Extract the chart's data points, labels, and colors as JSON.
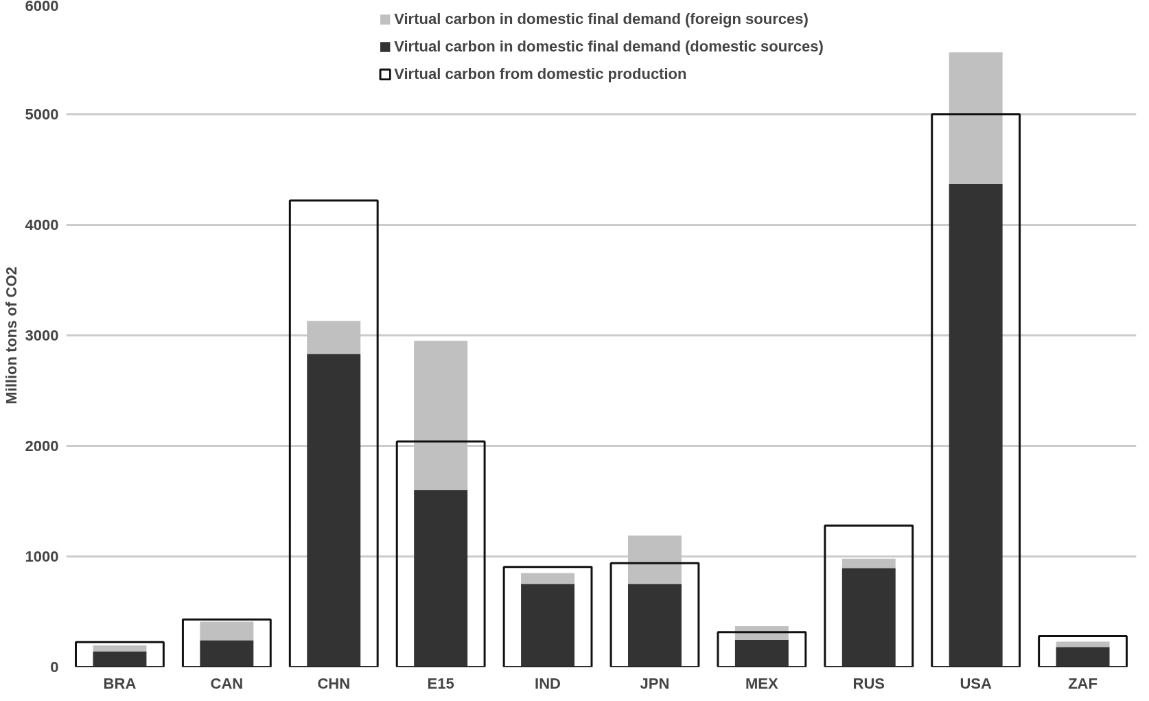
{
  "chart_data": {
    "type": "bar",
    "ylabel": "Million tons of CO2",
    "categories": [
      "BRA",
      "CAN",
      "CHN",
      "E15",
      "IND",
      "JPN",
      "MEX",
      "RUS",
      "USA",
      "ZAF"
    ],
    "ylim": [
      0,
      6000
    ],
    "yticks": [
      0,
      1000,
      2000,
      3000,
      4000,
      5000,
      6000
    ],
    "grid": "y",
    "legend": "top",
    "series": [
      {
        "name": "Virtual carbon in domestic final demand (foreign sources)",
        "color": "#c0c0c0",
        "base": [
          140,
          240,
          2830,
          1600,
          750,
          750,
          245,
          895,
          4370,
          180
        ],
        "values": [
          55,
          170,
          300,
          1350,
          100,
          440,
          125,
          85,
          1190,
          50
        ]
      },
      {
        "name": "Virtual carbon in domestic final demand (domestic sources)",
        "color": "#333333",
        "values": [
          140,
          240,
          2830,
          1600,
          750,
          750,
          245,
          895,
          4370,
          180
        ]
      },
      {
        "name": "Virtual carbon from domestic production",
        "color": "#111111",
        "values": [
          225,
          430,
          4220,
          2040,
          905,
          940,
          315,
          1280,
          5000,
          280
        ]
      }
    ]
  }
}
